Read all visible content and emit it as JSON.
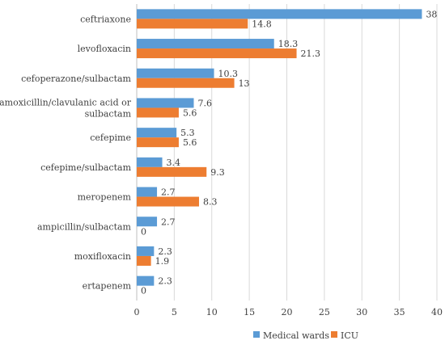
{
  "chart_data": {
    "type": "bar",
    "orientation": "horizontal",
    "categories": [
      "ceftriaxone",
      "levofloxacin",
      "cefoperazone/sulbactam",
      "amoxicillin/clavulanic acid or sulbactam",
      "cefepime",
      "cefepime/sulbactam",
      "meropenem",
      "ampicillin/sulbactam",
      "moxifloxacin",
      "ertapenem"
    ],
    "category_lines": [
      [
        "ceftriaxone"
      ],
      [
        "levofloxacin"
      ],
      [
        "cefoperazone/sulbactam"
      ],
      [
        "amoxicillin/clavulanic acid or",
        "sulbactam"
      ],
      [
        "cefepime"
      ],
      [
        "cefepime/sulbactam"
      ],
      [
        "meropenem"
      ],
      [
        "ampicillin/sulbactam"
      ],
      [
        "moxifloxacin"
      ],
      [
        "ertapenem"
      ]
    ],
    "series": [
      {
        "name": "Medical wards",
        "color": "#5B9BD5",
        "values": [
          38,
          18.3,
          10.3,
          7.6,
          5.3,
          3.4,
          2.7,
          2.7,
          2.3,
          2.3
        ]
      },
      {
        "name": "ICU",
        "color": "#ED7D31",
        "values": [
          14.8,
          21.3,
          13,
          5.6,
          5.6,
          9.3,
          8.3,
          0,
          1.9,
          0
        ]
      }
    ],
    "xlim": [
      0,
      40
    ],
    "xticks": [
      0,
      5,
      10,
      15,
      20,
      25,
      30,
      35,
      40
    ],
    "grid": true,
    "legend_position": "bottom-right",
    "title": "",
    "xlabel": "",
    "ylabel": ""
  }
}
